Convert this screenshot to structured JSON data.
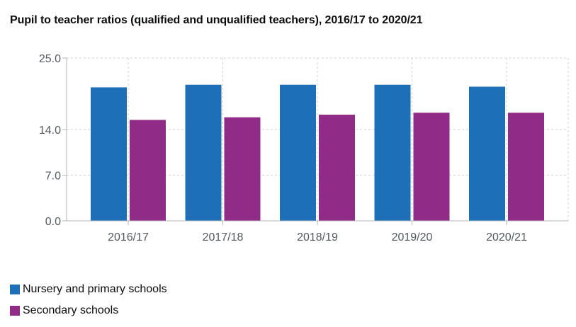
{
  "title": "Pupil to teacher ratios (qualified and unqualified teachers), 2016/17 to 2020/21",
  "chart_data": {
    "type": "bar",
    "title": "Pupil to teacher ratios (qualified and unqualified teachers), 2016/17 to 2020/21",
    "categories": [
      "2016/17",
      "2017/18",
      "2018/19",
      "2019/20",
      "2020/21"
    ],
    "series": [
      {
        "name": "Nursery and primary schools",
        "color": "#1d70b8",
        "values": [
          20.5,
          20.9,
          20.9,
          20.9,
          20.6
        ]
      },
      {
        "name": "Secondary schools",
        "color": "#912b88",
        "values": [
          15.5,
          15.9,
          16.3,
          16.6,
          16.6
        ]
      }
    ],
    "yticks": [
      0,
      7,
      14,
      25
    ],
    "ytick_labels": [
      "0.0",
      "7.0",
      "14.0",
      "25.0"
    ],
    "ylim": [
      0,
      25
    ],
    "xlabel": "",
    "ylabel": "",
    "grid": true,
    "legend": "bottom-left"
  },
  "legend": {
    "items": [
      {
        "label": "Nursery and primary schools",
        "color": "#1d70b8"
      },
      {
        "label": "Secondary schools",
        "color": "#912b88"
      }
    ]
  }
}
